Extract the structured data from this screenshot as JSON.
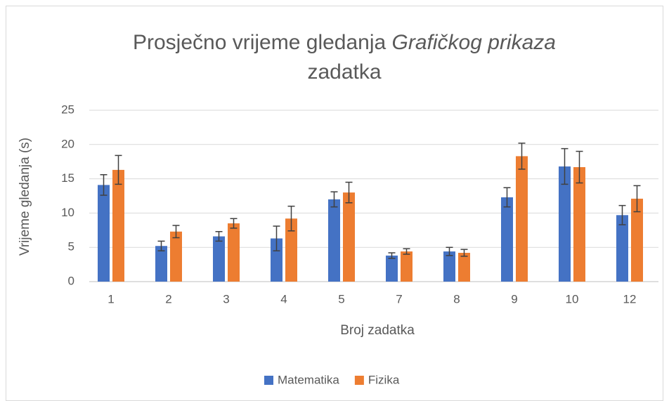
{
  "chart_data": {
    "type": "bar",
    "title": [
      "Prosječno vrijeme gledanja",
      "Grafičkog prikaza",
      "zadatka"
    ],
    "x_label": "Broj zadatka",
    "y_label": "Vrijeme gledanja (s)",
    "categories": [
      "1",
      "2",
      "3",
      "4",
      "5",
      "7",
      "8",
      "9",
      "10",
      "12"
    ],
    "series": [
      {
        "name": "Matematika",
        "color": "#4472c4",
        "values": [
          14.1,
          5.2,
          6.6,
          6.3,
          12.0,
          3.8,
          4.4,
          12.3,
          16.8,
          9.7
        ],
        "errors": [
          1.5,
          0.7,
          0.7,
          1.8,
          1.1,
          0.4,
          0.6,
          1.4,
          2.6,
          1.4
        ]
      },
      {
        "name": "Fizika",
        "color": "#ed7d31",
        "values": [
          16.3,
          7.3,
          8.5,
          9.2,
          13.0,
          4.4,
          4.2,
          18.3,
          16.7,
          12.1
        ],
        "errors": [
          2.1,
          0.9,
          0.7,
          1.8,
          1.5,
          0.4,
          0.5,
          1.9,
          2.3,
          1.9
        ]
      }
    ],
    "ylim": [
      0,
      25
    ],
    "yticks": [
      0,
      5,
      10,
      15,
      20,
      25
    ],
    "grid": true,
    "legend": "bottom"
  }
}
